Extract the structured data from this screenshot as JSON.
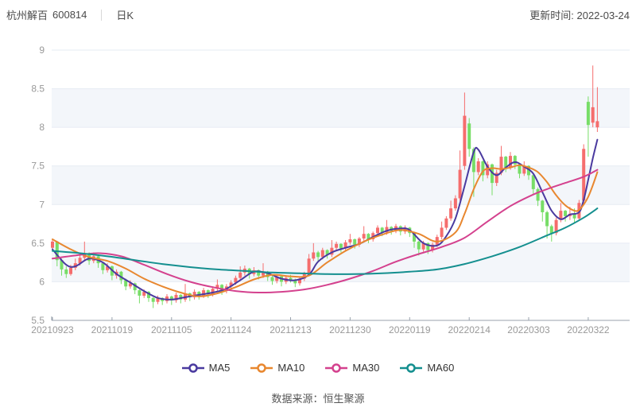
{
  "header": {
    "stock_name": "杭州解百",
    "stock_code": "600814",
    "period_label": "日K",
    "update_label": "更新时间: 2022-03-24"
  },
  "footer": {
    "source_label": "数据来源：恒生聚源"
  },
  "legend": [
    {
      "label": "MA5",
      "color": "#4a3a9f"
    },
    {
      "label": "MA10",
      "color": "#e8872f"
    },
    {
      "label": "MA30",
      "color": "#d4418e"
    },
    {
      "label": "MA60",
      "color": "#148f8f"
    }
  ],
  "chart_data": {
    "type": "candlestick",
    "title": "杭州解百 600814 日K",
    "ylabel": "",
    "xlabel": "",
    "ylim": [
      5.5,
      9
    ],
    "y_ticks": [
      9,
      8.5,
      8,
      7.5,
      7,
      6.5,
      6,
      5.5
    ],
    "x_tick_labels": [
      "20210923",
      "20211019",
      "20211105",
      "20211124",
      "20211213",
      "20211230",
      "20220119",
      "20220214",
      "20220303",
      "20220322"
    ],
    "x_tick_indices": [
      0,
      13,
      26,
      39,
      52,
      65,
      78,
      91,
      104,
      117
    ],
    "grid": true,
    "legend_position": "bottom",
    "up_color": "#f56d6d",
    "down_color": "#77dd67",
    "band_color": "#f3f6fa",
    "grid_color": "#e6ebf3",
    "axis_color": "#99a2ad",
    "tick_text_color": "#999999",
    "candles_format": "[open, high, low, close]",
    "candles": [
      [
        6.44,
        6.56,
        6.4,
        6.52
      ],
      [
        6.52,
        6.53,
        6.2,
        6.28
      ],
      [
        6.28,
        6.3,
        6.08,
        6.16
      ],
      [
        6.16,
        6.2,
        6.05,
        6.1
      ],
      [
        6.1,
        6.22,
        6.08,
        6.18
      ],
      [
        6.18,
        6.3,
        6.15,
        6.24
      ],
      [
        6.24,
        6.36,
        6.21,
        6.31
      ],
      [
        6.31,
        6.52,
        6.28,
        6.35
      ],
      [
        6.35,
        6.38,
        6.22,
        6.27
      ],
      [
        6.27,
        6.38,
        6.24,
        6.33
      ],
      [
        6.33,
        6.35,
        6.18,
        6.24
      ],
      [
        6.24,
        6.26,
        6.1,
        6.15
      ],
      [
        6.15,
        6.24,
        6.12,
        6.2
      ],
      [
        6.2,
        6.21,
        6.02,
        6.08
      ],
      [
        6.08,
        6.16,
        6.04,
        6.13
      ],
      [
        6.13,
        6.14,
        5.97,
        6.02
      ],
      [
        6.02,
        6.04,
        5.89,
        5.94
      ],
      [
        5.94,
        6.02,
        5.91,
        5.98
      ],
      [
        5.98,
        5.99,
        5.84,
        5.89
      ],
      [
        5.89,
        5.9,
        5.72,
        5.82
      ],
      [
        5.82,
        5.9,
        5.79,
        5.87
      ],
      [
        5.87,
        5.88,
        5.74,
        5.79
      ],
      [
        5.79,
        5.8,
        5.66,
        5.74
      ],
      [
        5.74,
        5.82,
        5.71,
        5.79
      ],
      [
        5.79,
        5.8,
        5.7,
        5.75
      ],
      [
        5.75,
        5.84,
        5.72,
        5.81
      ],
      [
        5.81,
        5.82,
        5.7,
        5.76
      ],
      [
        5.76,
        5.86,
        5.73,
        5.83
      ],
      [
        5.83,
        5.84,
        5.72,
        5.77
      ],
      [
        5.77,
        5.97,
        5.74,
        5.85
      ],
      [
        5.85,
        5.86,
        5.75,
        5.8
      ],
      [
        5.8,
        5.9,
        5.77,
        5.87
      ],
      [
        5.87,
        5.88,
        5.77,
        5.82
      ],
      [
        5.82,
        5.92,
        5.79,
        5.89
      ],
      [
        5.89,
        5.9,
        5.79,
        5.84
      ],
      [
        5.84,
        5.94,
        5.81,
        5.91
      ],
      [
        5.91,
        6.03,
        5.88,
        5.96
      ],
      [
        5.96,
        5.97,
        5.83,
        5.88
      ],
      [
        5.88,
        5.97,
        5.85,
        5.94
      ],
      [
        5.94,
        6.02,
        5.91,
        5.99
      ],
      [
        5.99,
        6.08,
        5.96,
        6.05
      ],
      [
        6.05,
        6.2,
        6.02,
        6.12
      ],
      [
        6.12,
        6.21,
        6.08,
        6.17
      ],
      [
        6.17,
        6.18,
        6.04,
        6.1
      ],
      [
        6.1,
        6.19,
        6.07,
        6.15
      ],
      [
        6.15,
        6.16,
        6.03,
        6.08
      ],
      [
        6.08,
        6.24,
        6.05,
        6.13
      ],
      [
        6.13,
        6.14,
        6.01,
        6.06
      ],
      [
        6.06,
        6.08,
        5.96,
        6.01
      ],
      [
        6.01,
        6.1,
        5.98,
        6.07
      ],
      [
        6.07,
        6.08,
        5.94,
        6.0
      ],
      [
        6.0,
        6.08,
        5.97,
        6.05
      ],
      [
        6.05,
        6.09,
        5.99,
        6.02
      ],
      [
        6.02,
        6.04,
        5.93,
        5.98
      ],
      [
        5.98,
        6.07,
        5.95,
        6.04
      ],
      [
        6.04,
        6.13,
        6.01,
        6.11
      ],
      [
        6.11,
        6.36,
        6.08,
        6.3
      ],
      [
        6.3,
        6.5,
        6.27,
        6.38
      ],
      [
        6.38,
        6.4,
        6.26,
        6.32
      ],
      [
        6.32,
        6.44,
        6.29,
        6.41
      ],
      [
        6.41,
        6.42,
        6.3,
        6.35
      ],
      [
        6.35,
        6.54,
        6.32,
        6.44
      ],
      [
        6.44,
        6.52,
        6.41,
        6.49
      ],
      [
        6.49,
        6.5,
        6.38,
        6.43
      ],
      [
        6.43,
        6.54,
        6.4,
        6.51
      ],
      [
        6.51,
        6.62,
        6.48,
        6.55
      ],
      [
        6.55,
        6.56,
        6.43,
        6.48
      ],
      [
        6.48,
        6.58,
        6.45,
        6.56
      ],
      [
        6.56,
        6.72,
        6.53,
        6.62
      ],
      [
        6.62,
        6.63,
        6.5,
        6.55
      ],
      [
        6.55,
        6.65,
        6.52,
        6.63
      ],
      [
        6.63,
        6.73,
        6.6,
        6.7
      ],
      [
        6.7,
        6.71,
        6.59,
        6.64
      ],
      [
        6.64,
        6.8,
        6.61,
        6.71
      ],
      [
        6.71,
        6.72,
        6.61,
        6.66
      ],
      [
        6.66,
        6.75,
        6.63,
        6.72
      ],
      [
        6.72,
        6.73,
        6.6,
        6.65
      ],
      [
        6.65,
        6.73,
        6.62,
        6.7
      ],
      [
        6.7,
        6.71,
        6.58,
        6.63
      ],
      [
        6.63,
        6.64,
        6.44,
        6.52
      ],
      [
        6.52,
        6.53,
        6.34,
        6.42
      ],
      [
        6.42,
        6.53,
        6.39,
        6.5
      ],
      [
        6.5,
        6.51,
        6.36,
        6.41
      ],
      [
        6.41,
        6.51,
        6.38,
        6.48
      ],
      [
        6.48,
        6.61,
        6.45,
        6.58
      ],
      [
        6.58,
        6.78,
        6.55,
        6.7
      ],
      [
        6.7,
        6.85,
        6.67,
        6.82
      ],
      [
        6.82,
        7.05,
        6.79,
        6.95
      ],
      [
        6.95,
        7.12,
        6.92,
        7.08
      ],
      [
        7.08,
        7.7,
        7.05,
        7.45
      ],
      [
        7.5,
        8.45,
        7.45,
        8.15
      ],
      [
        8.05,
        8.12,
        7.62,
        7.72
      ],
      [
        7.72,
        7.74,
        7.1,
        7.42
      ],
      [
        7.42,
        7.6,
        7.38,
        7.56
      ],
      [
        7.56,
        7.57,
        7.3,
        7.38
      ],
      [
        7.38,
        7.56,
        7.34,
        7.52
      ],
      [
        7.52,
        7.53,
        7.12,
        7.28
      ],
      [
        7.28,
        7.45,
        7.24,
        7.41
      ],
      [
        7.41,
        7.76,
        7.38,
        7.62
      ],
      [
        7.62,
        7.63,
        7.42,
        7.48
      ],
      [
        7.48,
        7.68,
        7.45,
        7.63
      ],
      [
        7.63,
        7.64,
        7.46,
        7.52
      ],
      [
        7.52,
        7.53,
        7.34,
        7.4
      ],
      [
        7.4,
        7.56,
        7.37,
        7.5
      ],
      [
        7.5,
        7.51,
        7.32,
        7.38
      ],
      [
        7.38,
        7.39,
        7.14,
        7.2
      ],
      [
        7.2,
        7.22,
        6.98,
        7.05
      ],
      [
        7.05,
        7.06,
        6.78,
        6.9
      ],
      [
        6.9,
        6.92,
        6.56,
        6.72
      ],
      [
        6.72,
        6.74,
        6.52,
        6.63
      ],
      [
        6.63,
        6.83,
        6.6,
        6.8
      ],
      [
        6.8,
        7.02,
        6.77,
        6.92
      ],
      [
        6.92,
        6.93,
        6.78,
        6.85
      ],
      [
        6.85,
        6.97,
        6.8,
        6.88
      ],
      [
        6.88,
        6.95,
        6.76,
        6.82
      ],
      [
        6.82,
        7.06,
        6.8,
        7.02
      ],
      [
        7.05,
        7.78,
        7.02,
        7.72
      ],
      [
        8.33,
        8.4,
        7.62,
        8.03
      ],
      [
        8.06,
        8.8,
        8.0,
        8.26
      ],
      [
        8.0,
        8.52,
        7.94,
        8.08
      ]
    ],
    "ma_series": [
      {
        "name": "MA5",
        "color": "#4a3a9f",
        "points": [
          [
            0,
            6.42
          ],
          [
            3,
            6.22
          ],
          [
            5,
            6.2
          ],
          [
            8,
            6.3
          ],
          [
            11,
            6.25
          ],
          [
            14,
            6.1
          ],
          [
            17,
            5.99
          ],
          [
            20,
            5.88
          ],
          [
            23,
            5.79
          ],
          [
            26,
            5.77
          ],
          [
            29,
            5.8
          ],
          [
            32,
            5.83
          ],
          [
            35,
            5.86
          ],
          [
            38,
            5.91
          ],
          [
            41,
            6.02
          ],
          [
            44,
            6.13
          ],
          [
            47,
            6.11
          ],
          [
            50,
            6.04
          ],
          [
            53,
            6.02
          ],
          [
            56,
            6.09
          ],
          [
            58,
            6.26
          ],
          [
            61,
            6.38
          ],
          [
            64,
            6.44
          ],
          [
            67,
            6.49
          ],
          [
            70,
            6.58
          ],
          [
            73,
            6.66
          ],
          [
            76,
            6.69
          ],
          [
            78,
            6.67
          ],
          [
            81,
            6.5
          ],
          [
            84,
            6.47
          ],
          [
            86,
            6.59
          ],
          [
            88,
            6.82
          ],
          [
            90,
            7.24
          ],
          [
            92,
            7.68
          ],
          [
            93,
            7.71
          ],
          [
            95,
            7.49
          ],
          [
            97,
            7.38
          ],
          [
            99,
            7.48
          ],
          [
            101,
            7.55
          ],
          [
            103,
            7.49
          ],
          [
            105,
            7.4
          ],
          [
            107,
            7.16
          ],
          [
            109,
            6.92
          ],
          [
            111,
            6.81
          ],
          [
            113,
            6.87
          ],
          [
            115,
            6.9
          ],
          [
            116,
            7.06
          ],
          [
            117,
            7.32
          ],
          [
            118,
            7.6
          ],
          [
            119,
            7.84
          ]
        ]
      },
      {
        "name": "MA10",
        "color": "#e8872f",
        "points": [
          [
            0,
            6.55
          ],
          [
            4,
            6.42
          ],
          [
            8,
            6.32
          ],
          [
            12,
            6.27
          ],
          [
            16,
            6.17
          ],
          [
            20,
            6.04
          ],
          [
            24,
            5.94
          ],
          [
            28,
            5.86
          ],
          [
            32,
            5.81
          ],
          [
            36,
            5.85
          ],
          [
            40,
            5.93
          ],
          [
            44,
            6.03
          ],
          [
            48,
            6.09
          ],
          [
            52,
            6.07
          ],
          [
            56,
            6.08
          ],
          [
            60,
            6.25
          ],
          [
            64,
            6.4
          ],
          [
            68,
            6.52
          ],
          [
            72,
            6.61
          ],
          [
            76,
            6.67
          ],
          [
            80,
            6.62
          ],
          [
            84,
            6.52
          ],
          [
            88,
            6.64
          ],
          [
            90,
            6.88
          ],
          [
            92,
            7.2
          ],
          [
            94,
            7.43
          ],
          [
            96,
            7.47
          ],
          [
            98,
            7.46
          ],
          [
            100,
            7.48
          ],
          [
            102,
            7.51
          ],
          [
            104,
            7.48
          ],
          [
            106,
            7.42
          ],
          [
            108,
            7.29
          ],
          [
            110,
            7.12
          ],
          [
            112,
            6.99
          ],
          [
            114,
            6.92
          ],
          [
            115,
            6.93
          ],
          [
            116,
            7.0
          ],
          [
            117,
            7.1
          ],
          [
            118,
            7.25
          ],
          [
            119,
            7.42
          ]
        ]
      },
      {
        "name": "MA30",
        "color": "#d4418e",
        "points": [
          [
            0,
            6.3
          ],
          [
            5,
            6.34
          ],
          [
            10,
            6.37
          ],
          [
            15,
            6.33
          ],
          [
            20,
            6.22
          ],
          [
            25,
            6.1
          ],
          [
            30,
            6.0
          ],
          [
            35,
            5.93
          ],
          [
            40,
            5.88
          ],
          [
            45,
            5.86
          ],
          [
            50,
            5.87
          ],
          [
            55,
            5.9
          ],
          [
            60,
            5.96
          ],
          [
            65,
            6.04
          ],
          [
            70,
            6.14
          ],
          [
            75,
            6.26
          ],
          [
            80,
            6.36
          ],
          [
            85,
            6.45
          ],
          [
            90,
            6.57
          ],
          [
            95,
            6.78
          ],
          [
            100,
            6.98
          ],
          [
            105,
            7.13
          ],
          [
            108,
            7.2
          ],
          [
            112,
            7.28
          ],
          [
            116,
            7.36
          ],
          [
            119,
            7.45
          ]
        ]
      },
      {
        "name": "MA60",
        "color": "#148f8f",
        "points": [
          [
            0,
            6.4
          ],
          [
            6,
            6.37
          ],
          [
            12,
            6.33
          ],
          [
            18,
            6.28
          ],
          [
            24,
            6.23
          ],
          [
            30,
            6.19
          ],
          [
            36,
            6.16
          ],
          [
            42,
            6.14
          ],
          [
            48,
            6.12
          ],
          [
            54,
            6.11
          ],
          [
            60,
            6.1
          ],
          [
            66,
            6.1
          ],
          [
            72,
            6.11
          ],
          [
            78,
            6.13
          ],
          [
            84,
            6.16
          ],
          [
            90,
            6.23
          ],
          [
            96,
            6.33
          ],
          [
            102,
            6.45
          ],
          [
            108,
            6.6
          ],
          [
            112,
            6.7
          ],
          [
            116,
            6.83
          ],
          [
            119,
            6.95
          ]
        ]
      }
    ]
  }
}
